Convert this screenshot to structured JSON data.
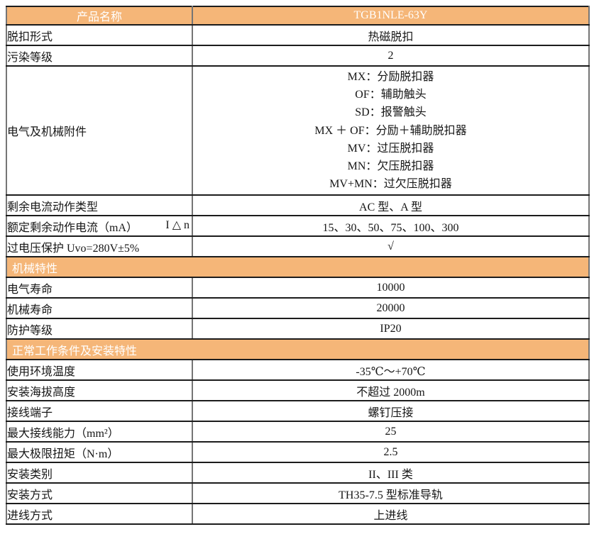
{
  "colors": {
    "accent_orange": "#F5B678",
    "header_text": "#FFFFFF",
    "body_text": "#161616",
    "h_border": "#1C1C1C",
    "v_border": "#757575"
  },
  "table": {
    "header": {
      "label": "产品名称",
      "value": "TGB1NLE-63Y"
    },
    "rows": [
      {
        "type": "row",
        "label": "脱扣形式",
        "value": "热磁脱扣"
      },
      {
        "type": "row",
        "label": "污染等级",
        "value": "2"
      },
      {
        "type": "multirow",
        "label": "电气及机械附件",
        "lines": [
          "MX：分励脱扣器",
          "OF：辅助触头",
          "SD：报警触头",
          "MX ＋ OF：分励＋辅助脱扣器",
          "MV：过压脱扣器",
          "MN：欠压脱扣器",
          "MV+MN：过欠压脱扣器"
        ]
      },
      {
        "type": "row",
        "label": "剩余电流动作类型",
        "value": "AC 型、A 型"
      },
      {
        "type": "row",
        "label": "额定剩余动作电流（mA）",
        "label_right": "I △ n",
        "value": "15、30、50、75、100、300"
      },
      {
        "type": "row",
        "label": "过电压保护 Uvo=280V±5%",
        "value": "√"
      },
      {
        "type": "section",
        "label": "机械特性"
      },
      {
        "type": "row",
        "label": "电气寿命",
        "value": "10000"
      },
      {
        "type": "row",
        "label": "机械寿命",
        "value": "20000"
      },
      {
        "type": "row",
        "label": "防护等级",
        "value": "IP20"
      },
      {
        "type": "section",
        "label": "正常工作条件及安装特性"
      },
      {
        "type": "row",
        "label": "使用环境温度",
        "value": "-35℃～+70℃"
      },
      {
        "type": "row",
        "label": "安装海拔高度",
        "value": "不超过 2000m"
      },
      {
        "type": "row",
        "label": "接线端子",
        "value": "螺钉压接"
      },
      {
        "type": "row",
        "label": "最大接线能力（mm²）",
        "value": "25"
      },
      {
        "type": "row",
        "label": "最大极限扭矩（N·m）",
        "value": "2.5"
      },
      {
        "type": "row",
        "label": "安装类别",
        "value": "II、III 类"
      },
      {
        "type": "row",
        "label": "安装方式",
        "value": "TH35-7.5 型标准导轨"
      },
      {
        "type": "row",
        "label": "进线方式",
        "value": "上进线"
      }
    ]
  }
}
